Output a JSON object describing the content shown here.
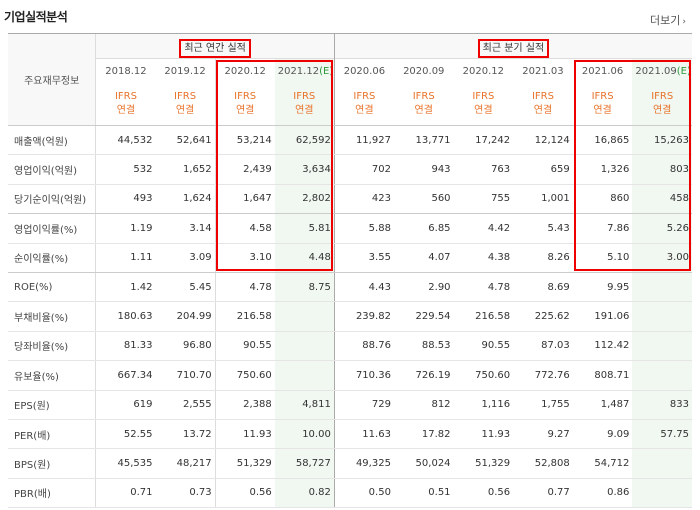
{
  "section_title": "기업실적분석",
  "more_label": "더보기",
  "row_header": "주요재무정보",
  "groups": {
    "annual": "최근 연간 실적",
    "quarter": "최근 분기 실적"
  },
  "periods": [
    "2018.12",
    "2019.12",
    "2020.12",
    "2021.12",
    "2020.06",
    "2020.09",
    "2020.12",
    "2021.03",
    "2021.06",
    "2021.09"
  ],
  "estimate_mark": "(E)",
  "ifrs": "IFRS",
  "consol": "연결",
  "rows": [
    {
      "label": "매출액(억원)",
      "values": [
        "44,532",
        "52,641",
        "53,214",
        "62,592",
        "11,927",
        "13,771",
        "17,242",
        "12,124",
        "16,865",
        "15,263"
      ]
    },
    {
      "label": "영업이익(억원)",
      "values": [
        "532",
        "1,652",
        "2,439",
        "3,634",
        "702",
        "943",
        "763",
        "659",
        "1,326",
        "803"
      ]
    },
    {
      "label": "당기순이익(억원)",
      "values": [
        "493",
        "1,624",
        "1,647",
        "2,802",
        "423",
        "560",
        "755",
        "1,001",
        "860",
        "458"
      ]
    },
    {
      "label": "영업이익률(%)",
      "values": [
        "1.19",
        "3.14",
        "4.58",
        "5.81",
        "5.88",
        "6.85",
        "4.42",
        "5.43",
        "7.86",
        "5.26"
      ]
    },
    {
      "label": "순이익률(%)",
      "values": [
        "1.11",
        "3.09",
        "3.10",
        "4.48",
        "3.55",
        "4.07",
        "4.38",
        "8.26",
        "5.10",
        "3.00"
      ]
    },
    {
      "label": "ROE(%)",
      "values": [
        "1.42",
        "5.45",
        "4.78",
        "8.75",
        "4.43",
        "2.90",
        "4.78",
        "8.69",
        "9.95",
        ""
      ]
    },
    {
      "label": "부채비율(%)",
      "values": [
        "180.63",
        "204.99",
        "216.58",
        "",
        "239.82",
        "229.54",
        "216.58",
        "225.62",
        "191.06",
        ""
      ]
    },
    {
      "label": "당좌비율(%)",
      "values": [
        "81.33",
        "96.80",
        "90.55",
        "",
        "88.76",
        "88.53",
        "90.55",
        "87.03",
        "112.42",
        ""
      ]
    },
    {
      "label": "유보율(%)",
      "values": [
        "667.34",
        "710.70",
        "750.60",
        "",
        "710.36",
        "726.19",
        "750.60",
        "772.76",
        "808.71",
        ""
      ]
    },
    {
      "label": "EPS(원)",
      "values": [
        "619",
        "2,555",
        "2,388",
        "4,811",
        "729",
        "812",
        "1,116",
        "1,755",
        "1,487",
        "833"
      ]
    },
    {
      "label": "PER(배)",
      "values": [
        "52.55",
        "13.72",
        "11.93",
        "10.00",
        "11.63",
        "17.82",
        "11.93",
        "9.27",
        "9.09",
        "57.75"
      ]
    },
    {
      "label": "BPS(원)",
      "values": [
        "45,535",
        "48,217",
        "51,329",
        "58,727",
        "49,325",
        "50,024",
        "51,329",
        "52,808",
        "54,712",
        ""
      ]
    },
    {
      "label": "PBR(배)",
      "values": [
        "0.71",
        "0.73",
        "0.56",
        "0.82",
        "0.50",
        "0.51",
        "0.56",
        "0.77",
        "0.86",
        ""
      ]
    }
  ]
}
